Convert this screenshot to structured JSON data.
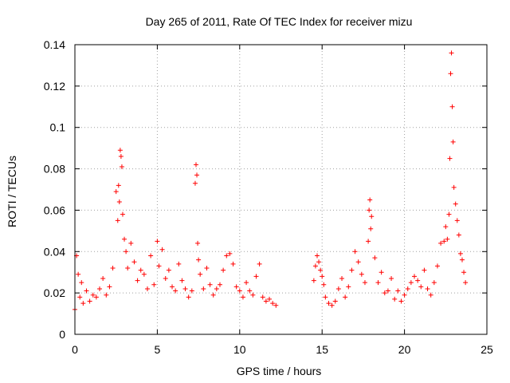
{
  "chart_data": {
    "type": "scatter",
    "title": "Day 265 of 2011, Rate Of TEC Index for receiver mizu",
    "xlabel": "GPS time / hours",
    "ylabel": "ROTI / TECUs",
    "xlim": [
      0,
      25
    ],
    "ylim": [
      0,
      0.14
    ],
    "x_ticks": [
      0,
      5,
      10,
      15,
      20,
      25
    ],
    "x_tick_labels": [
      "0",
      "5",
      "10",
      "15",
      "20",
      "25"
    ],
    "y_ticks": [
      0,
      0.02,
      0.04,
      0.06,
      0.08,
      0.1,
      0.12,
      0.14
    ],
    "y_tick_labels": [
      "0",
      "0.02",
      "0.04",
      "0.06",
      "0.08",
      "0.1",
      "0.12",
      "0.14"
    ],
    "grid": true,
    "marker": "+",
    "color": "#ff0000",
    "series": [
      {
        "name": "ROTI",
        "x": [
          0.0,
          0.1,
          0.2,
          0.3,
          0.4,
          0.5,
          0.7,
          0.9,
          1.1,
          1.3,
          1.5,
          1.7,
          1.9,
          2.1,
          2.3,
          2.5,
          2.6,
          2.65,
          2.7,
          2.75,
          2.8,
          2.85,
          2.9,
          3.0,
          3.1,
          3.2,
          3.4,
          3.6,
          3.8,
          4.0,
          4.2,
          4.4,
          4.6,
          4.8,
          5.0,
          5.1,
          5.3,
          5.5,
          5.7,
          5.9,
          6.1,
          6.3,
          6.5,
          6.7,
          6.9,
          7.1,
          7.3,
          7.35,
          7.4,
          7.45,
          7.5,
          7.6,
          7.8,
          8.0,
          8.2,
          8.4,
          8.6,
          8.8,
          9.0,
          9.2,
          9.4,
          9.6,
          9.8,
          10.0,
          10.2,
          10.4,
          10.6,
          10.8,
          11.0,
          11.2,
          11.4,
          11.6,
          11.8,
          12.0,
          12.2,
          14.5,
          14.6,
          14.7,
          14.8,
          14.9,
          15.0,
          15.1,
          15.2,
          15.4,
          15.6,
          15.8,
          16.0,
          16.2,
          16.4,
          16.6,
          16.8,
          17.0,
          17.2,
          17.4,
          17.6,
          17.8,
          17.85,
          17.9,
          17.95,
          18.0,
          18.2,
          18.4,
          18.6,
          18.8,
          19.0,
          19.2,
          19.4,
          19.6,
          19.8,
          20.0,
          20.2,
          20.4,
          20.6,
          20.8,
          21.0,
          21.2,
          21.4,
          21.6,
          21.8,
          22.0,
          22.2,
          22.4,
          22.5,
          22.6,
          22.7,
          22.75,
          22.8,
          22.85,
          22.9,
          22.95,
          23.0,
          23.1,
          23.2,
          23.3,
          23.4,
          23.5,
          23.6,
          23.7
        ],
        "y": [
          0.012,
          0.038,
          0.029,
          0.018,
          0.025,
          0.015,
          0.021,
          0.016,
          0.019,
          0.018,
          0.022,
          0.027,
          0.019,
          0.023,
          0.032,
          0.069,
          0.055,
          0.072,
          0.064,
          0.089,
          0.086,
          0.081,
          0.058,
          0.046,
          0.04,
          0.032,
          0.044,
          0.035,
          0.026,
          0.031,
          0.029,
          0.022,
          0.038,
          0.024,
          0.045,
          0.033,
          0.041,
          0.027,
          0.031,
          0.023,
          0.021,
          0.034,
          0.026,
          0.022,
          0.018,
          0.021,
          0.073,
          0.082,
          0.077,
          0.044,
          0.036,
          0.029,
          0.022,
          0.032,
          0.024,
          0.019,
          0.022,
          0.024,
          0.031,
          0.038,
          0.039,
          0.034,
          0.023,
          0.021,
          0.018,
          0.025,
          0.021,
          0.019,
          0.028,
          0.034,
          0.018,
          0.016,
          0.017,
          0.015,
          0.014,
          0.026,
          0.033,
          0.038,
          0.035,
          0.031,
          0.028,
          0.024,
          0.018,
          0.015,
          0.014,
          0.016,
          0.022,
          0.027,
          0.018,
          0.023,
          0.031,
          0.04,
          0.035,
          0.029,
          0.025,
          0.045,
          0.06,
          0.065,
          0.051,
          0.057,
          0.037,
          0.025,
          0.03,
          0.02,
          0.021,
          0.027,
          0.017,
          0.021,
          0.016,
          0.019,
          0.022,
          0.025,
          0.028,
          0.026,
          0.023,
          0.031,
          0.022,
          0.019,
          0.025,
          0.033,
          0.044,
          0.045,
          0.052,
          0.046,
          0.058,
          0.085,
          0.126,
          0.136,
          0.11,
          0.093,
          0.071,
          0.063,
          0.055,
          0.048,
          0.039,
          0.036,
          0.03,
          0.025
        ]
      }
    ]
  }
}
